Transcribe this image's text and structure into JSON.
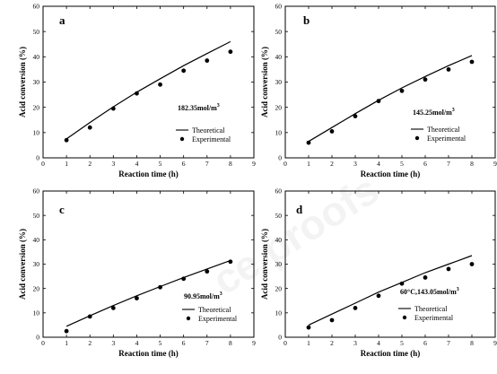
{
  "chart_data": [
    {
      "type": "line",
      "panel": "a",
      "condition": "182.35mol/m",
      "condition_sup": "3",
      "xlabel": "Reaction time  (h)",
      "ylabel": "Acid conversion (%)",
      "xlim": [
        0,
        9
      ],
      "ylim": [
        0,
        60
      ],
      "xticks": [
        0,
        1,
        2,
        3,
        4,
        5,
        6,
        7,
        8,
        9
      ],
      "yticks": [
        0,
        10,
        20,
        30,
        40,
        50,
        60
      ],
      "legend": [
        "Theoretical",
        "Experimental"
      ],
      "series": [
        {
          "name": "Theoretical",
          "kind": "line",
          "x": [
            1,
            2,
            3,
            4,
            5,
            6,
            7,
            8
          ],
          "y": [
            7.5,
            14.0,
            20.2,
            26.0,
            31.3,
            36.5,
            41.3,
            46.0
          ]
        },
        {
          "name": "Experimental",
          "kind": "scatter",
          "x": [
            1,
            2,
            3,
            4,
            5,
            6,
            7,
            8
          ],
          "y": [
            7.0,
            12.0,
            19.5,
            25.5,
            29.0,
            34.5,
            38.5,
            42.0
          ]
        }
      ]
    },
    {
      "type": "line",
      "panel": "b",
      "condition": "145.25mol/m",
      "condition_sup": "3",
      "xlabel": "Reaction time  (h)",
      "ylabel": "Acid conversion (%)",
      "xlim": [
        0,
        9
      ],
      "ylim": [
        0,
        60
      ],
      "xticks": [
        0,
        1,
        2,
        3,
        4,
        5,
        6,
        7,
        8,
        9
      ],
      "yticks": [
        0,
        10,
        20,
        30,
        40,
        50,
        60
      ],
      "legend": [
        "Theoretical",
        "Experimental"
      ],
      "series": [
        {
          "name": "Theoretical",
          "kind": "line",
          "x": [
            1,
            2,
            3,
            4,
            5,
            6,
            7,
            8
          ],
          "y": [
            6.5,
            12.0,
            17.5,
            22.8,
            27.7,
            32.2,
            36.5,
            40.5
          ]
        },
        {
          "name": "Experimental",
          "kind": "scatter",
          "x": [
            1,
            2,
            3,
            4,
            5,
            6,
            7,
            8
          ],
          "y": [
            6.0,
            10.5,
            16.5,
            22.5,
            26.5,
            31.0,
            35.0,
            38.0
          ]
        }
      ]
    },
    {
      "type": "line",
      "panel": "c",
      "condition": "90.95mol/m",
      "condition_sup": "3",
      "xlabel": "Reaction time  (h)",
      "ylabel": "Acid conversion (%)",
      "xlim": [
        0,
        9
      ],
      "ylim": [
        0,
        60
      ],
      "xticks": [
        0,
        1,
        2,
        3,
        4,
        5,
        6,
        7,
        8,
        9
      ],
      "yticks": [
        0,
        10,
        20,
        30,
        40,
        50,
        60
      ],
      "legend": [
        "Theoretical",
        "Experimental"
      ],
      "series": [
        {
          "name": "Theoretical",
          "kind": "line",
          "x": [
            1,
            2,
            3,
            4,
            5,
            6,
            7,
            8
          ],
          "y": [
            4.5,
            8.8,
            13.0,
            17.0,
            20.8,
            24.5,
            28.0,
            31.5
          ]
        },
        {
          "name": "Experimental",
          "kind": "scatter",
          "x": [
            1,
            2,
            3,
            4,
            5,
            6,
            7,
            8
          ],
          "y": [
            2.5,
            8.5,
            12.0,
            16.0,
            20.5,
            24.0,
            27.0,
            31.0
          ]
        }
      ]
    },
    {
      "type": "line",
      "panel": "d",
      "condition": "60°C,143.05mol/m",
      "condition_sup": "3",
      "xlabel": "Reaction time  (h)",
      "ylabel": "Acid conversion (%)",
      "xlim": [
        0,
        9
      ],
      "ylim": [
        0,
        60
      ],
      "xticks": [
        0,
        1,
        2,
        3,
        4,
        5,
        6,
        7,
        8,
        9
      ],
      "yticks": [
        0,
        10,
        20,
        30,
        40,
        50,
        60
      ],
      "legend": [
        "Theoretical",
        "Experimental"
      ],
      "series": [
        {
          "name": "Theoretical",
          "kind": "line",
          "x": [
            1,
            2,
            3,
            4,
            5,
            6,
            7,
            8
          ],
          "y": [
            5.0,
            9.5,
            14.0,
            18.5,
            22.5,
            26.5,
            30.0,
            33.5
          ]
        },
        {
          "name": "Experimental",
          "kind": "scatter",
          "x": [
            1,
            2,
            3,
            4,
            5,
            6,
            7,
            8
          ],
          "y": [
            4.0,
            7.0,
            12.0,
            17.0,
            22.0,
            24.5,
            28.0,
            30.0
          ]
        }
      ]
    }
  ],
  "watermark": "ce proofs"
}
